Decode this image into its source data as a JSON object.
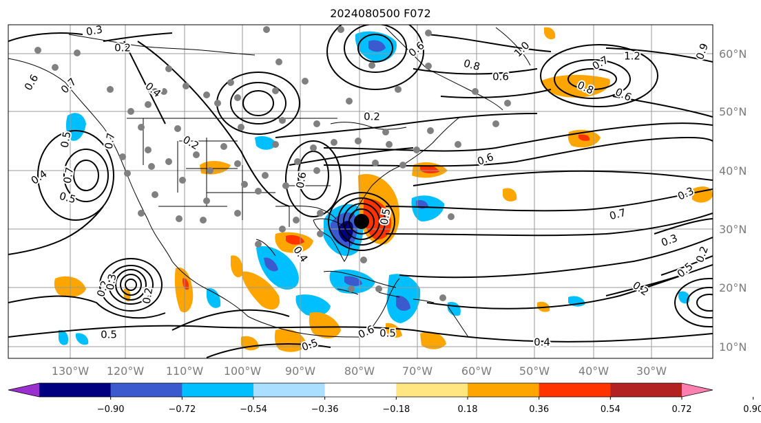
{
  "title": "2024080500 F072",
  "lat_labels": [
    "60°N",
    "50°N",
    "40°N",
    "30°N",
    "20°N",
    "10°N"
  ],
  "lon_labels": [
    "130°W",
    "120°W",
    "110°W",
    "100°W",
    "90°W",
    "80°W",
    "70°W",
    "60°W",
    "50°W",
    "40°W",
    "30°W"
  ],
  "colorbar": {
    "tick_labels": [
      "−0.90",
      "−0.72",
      "−0.54",
      "−0.36",
      "−0.18",
      "0.18",
      "0.36",
      "0.54",
      "0.72",
      "0.90"
    ],
    "colors": [
      "#9b30d0",
      "#000080",
      "#3a5acd",
      "#00bfff",
      "#aadfff",
      "#ffffff",
      "#ffe680",
      "#ffa500",
      "#ff3300",
      "#b22222",
      "#ff80b0"
    ]
  },
  "contour_labels": [
    "0.3",
    "0.2",
    "0.6",
    "0.7",
    "0.6",
    "0.8",
    "1.0",
    "1.2",
    "0.7",
    "0.8",
    "0.6",
    "0.6",
    "0.9",
    "0.4",
    "0.2",
    "0.5",
    "0.2",
    "0.7",
    "0.4",
    "0.5",
    "0.7",
    "0.6",
    "0.4",
    "0.5",
    "0.6",
    "0.7",
    "0.3",
    "0.3",
    "0.5",
    "0.2",
    "0.2",
    "0.3",
    "0.2",
    "0.5",
    "0.6",
    "0.5",
    "0.5",
    "0.4",
    "0.2"
  ]
}
